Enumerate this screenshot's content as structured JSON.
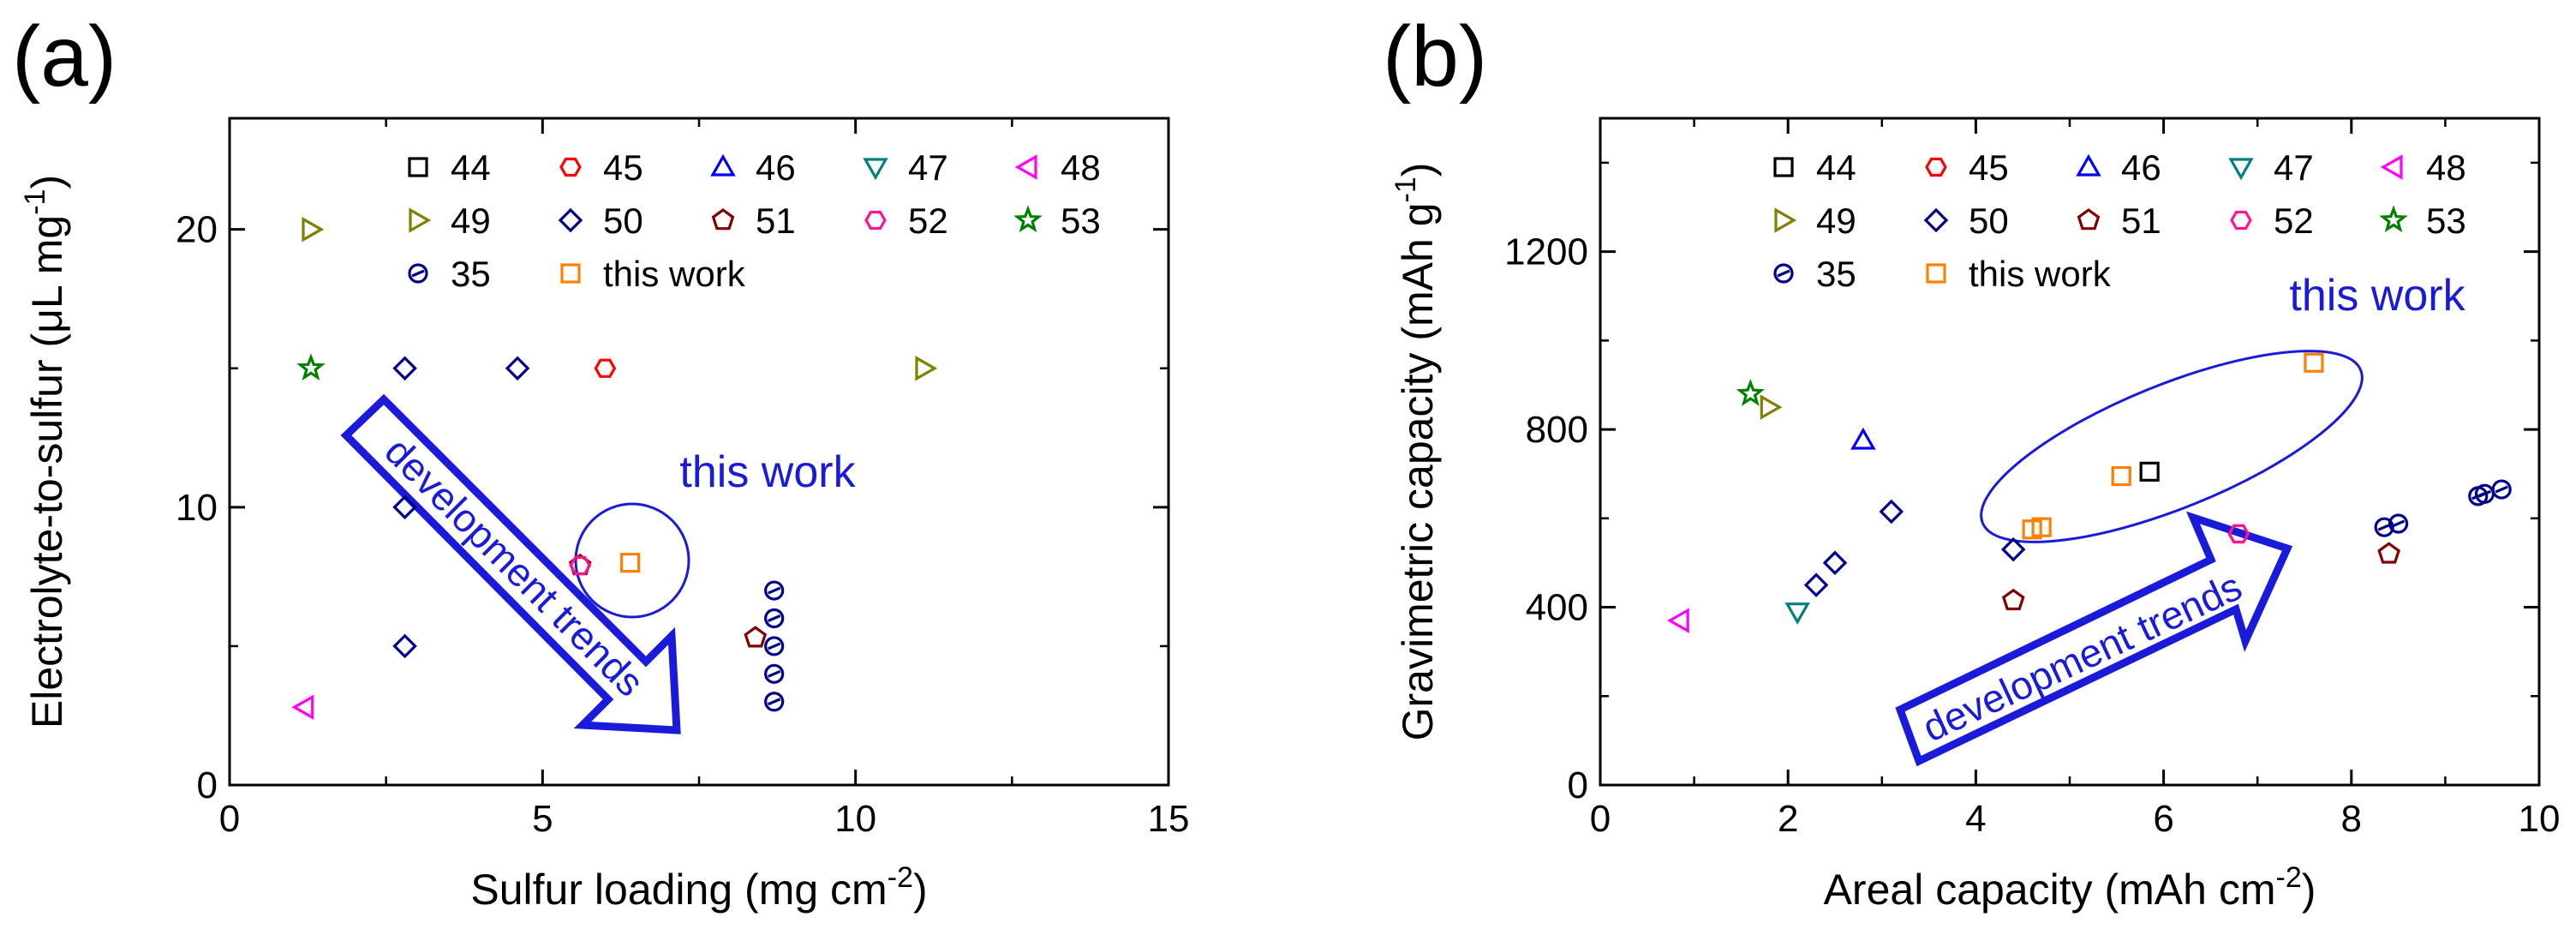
{
  "colors": {
    "44": "#000000",
    "45": "#ff0000",
    "46": "#0000ff",
    "47": "#008080",
    "48": "#ff00ff",
    "49": "#808000",
    "50": "#00008b",
    "51": "#800000",
    "52": "#ff1493",
    "53": "#008000",
    "35": "#00008b",
    "this work": "#ff8000",
    "annotation": "#1a1adb"
  },
  "chart_data": [
    {
      "type": "scatter",
      "panel_label": "(a)",
      "xlabel": "Sulfur loading (mg cm",
      "xlabel_sup": "-2",
      "xlabel_end": ")",
      "ylabel": "Electrolyte-to-sulfur (μL mg",
      "ylabel_sup": "-1",
      "ylabel_end": ")",
      "xlim": [
        0,
        15
      ],
      "ylim": [
        0,
        24
      ],
      "xticks": [
        "0",
        "5",
        "10",
        "15"
      ],
      "yticks": [
        "0",
        "10",
        "20"
      ],
      "annotation": "this work",
      "trend_label": "development trends",
      "legend": [
        "44",
        "45",
        "46",
        "47",
        "48",
        "49",
        "50",
        "51",
        "52",
        "53",
        "35",
        "this work"
      ],
      "series": [
        {
          "name": "48",
          "marker": "triangle-left",
          "points": [
            [
              1.2,
              2.8
            ]
          ]
        },
        {
          "name": "49",
          "marker": "triangle-right",
          "points": [
            [
              1.3,
              20
            ],
            [
              11.1,
              15
            ]
          ]
        },
        {
          "name": "50",
          "marker": "diamond",
          "points": [
            [
              2.8,
              15
            ],
            [
              4.6,
              15
            ],
            [
              2.8,
              10
            ],
            [
              2.8,
              5
            ]
          ]
        },
        {
          "name": "45",
          "marker": "hexagon",
          "points": [
            [
              6.0,
              15
            ]
          ]
        },
        {
          "name": "51",
          "marker": "pentagon",
          "points": [
            [
              5.6,
              7.9
            ],
            [
              8.4,
              5.3
            ]
          ]
        },
        {
          "name": "52",
          "marker": "hexagon",
          "points": [
            [
              5.6,
              7.9
            ]
          ]
        },
        {
          "name": "53",
          "marker": "star",
          "points": [
            [
              1.3,
              15
            ]
          ]
        },
        {
          "name": "35",
          "marker": "circle-slash",
          "points": [
            [
              8.7,
              7
            ],
            [
              8.7,
              6
            ],
            [
              8.7,
              5
            ],
            [
              8.7,
              4
            ],
            [
              8.7,
              3
            ]
          ]
        },
        {
          "name": "this work",
          "marker": "square",
          "points": [
            [
              6.4,
              8
            ]
          ]
        }
      ]
    },
    {
      "type": "scatter",
      "panel_label": "(b)",
      "xlabel": "Areal capacity (mAh cm",
      "xlabel_sup": "-2",
      "xlabel_end": ")",
      "ylabel": "Gravimetric capacity (mAh g",
      "ylabel_sup": "-1",
      "ylabel_end": ")",
      "xlim": [
        0,
        10
      ],
      "ylim": [
        0,
        1500
      ],
      "xticks": [
        "0",
        "2",
        "4",
        "6",
        "8",
        "10"
      ],
      "yticks": [
        "0",
        "400",
        "800",
        "1200"
      ],
      "annotation": "this work",
      "trend_label": "development trends",
      "legend": [
        "44",
        "45",
        "46",
        "47",
        "48",
        "49",
        "50",
        "51",
        "52",
        "53",
        "35",
        "this work"
      ],
      "series": [
        {
          "name": "44",
          "marker": "square",
          "points": [
            [
              5.85,
              705
            ]
          ]
        },
        {
          "name": "45",
          "marker": "hexagon",
          "points": [
            [
              6.8,
              565
            ]
          ]
        },
        {
          "name": "46",
          "marker": "triangle-up",
          "points": [
            [
              2.8,
              775
            ]
          ]
        },
        {
          "name": "47",
          "marker": "triangle-down",
          "points": [
            [
              2.1,
              390
            ]
          ]
        },
        {
          "name": "48",
          "marker": "triangle-left",
          "points": [
            [
              0.85,
              370
            ]
          ]
        },
        {
          "name": "49",
          "marker": "triangle-right",
          "points": [
            [
              1.8,
              850
            ]
          ]
        },
        {
          "name": "50",
          "marker": "diamond",
          "points": [
            [
              2.3,
              450
            ],
            [
              2.5,
              500
            ],
            [
              3.1,
              615
            ],
            [
              4.4,
              530
            ]
          ]
        },
        {
          "name": "51",
          "marker": "pentagon",
          "points": [
            [
              4.4,
              415
            ],
            [
              8.4,
              520
            ]
          ]
        },
        {
          "name": "52",
          "marker": "hexagon",
          "points": [
            [
              6.8,
              565
            ]
          ]
        },
        {
          "name": "53",
          "marker": "star",
          "points": [
            [
              1.6,
              880
            ]
          ]
        },
        {
          "name": "35",
          "marker": "circle-slash",
          "points": [
            [
              8.35,
              580
            ],
            [
              8.5,
              588
            ],
            [
              9.35,
              650
            ],
            [
              9.42,
              655
            ],
            [
              9.6,
              665
            ]
          ]
        },
        {
          "name": "this work",
          "marker": "square",
          "points": [
            [
              4.6,
              575
            ],
            [
              4.7,
              580
            ],
            [
              5.55,
              695
            ],
            [
              7.6,
              950
            ]
          ]
        }
      ]
    }
  ]
}
